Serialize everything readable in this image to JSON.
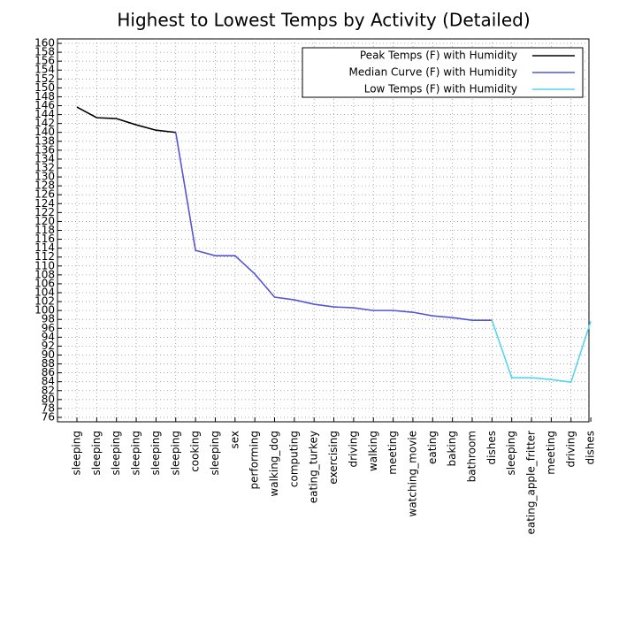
{
  "chart_data": {
    "type": "line",
    "title": "Highest to Lowest Temps by Activity (Detailed)",
    "categories": [
      "sleeping",
      "sleeping",
      "sleeping",
      "sleeping",
      "sleeping",
      "sleeping",
      "cooking",
      "sleeping",
      "sex",
      "performing",
      "walking_dog",
      "computing",
      "eating_turkey",
      "exercising",
      "driving",
      "walking",
      "meeting",
      "watching_movie",
      "eating",
      "baking",
      "bathroom",
      "dishes",
      "sleeping",
      "eating_apple_fritter",
      "meeting",
      "driving",
      "dishes"
    ],
    "series": [
      {
        "name": "Peak Temps (F) with Humidity",
        "color": "#000000",
        "values": [
          145.7,
          143.3,
          143.1,
          141.7,
          140.5,
          140,
          null,
          null,
          null,
          null,
          null,
          null,
          null,
          null,
          null,
          null,
          null,
          null,
          null,
          null,
          null,
          null,
          null,
          null,
          null,
          null,
          null
        ]
      },
      {
        "name": "Median Curve (F) with Humidity",
        "color": "#5555d5",
        "values": [
          null,
          null,
          null,
          null,
          null,
          140,
          113.5,
          112.3,
          112.3,
          108.2,
          103,
          102.4,
          101.4,
          100.8,
          100.6,
          100,
          100,
          99.6,
          98.8,
          98.4,
          97.8,
          97.8,
          null,
          null,
          null,
          null,
          null
        ]
      },
      {
        "name": "Low Temps (F) with Humidity",
        "color": "#55d5f0",
        "values": [
          null,
          null,
          null,
          null,
          null,
          null,
          null,
          null,
          null,
          null,
          null,
          null,
          null,
          null,
          null,
          null,
          null,
          null,
          null,
          null,
          null,
          97.8,
          84.9,
          84.9,
          84.5,
          83.9,
          97.6
        ]
      }
    ],
    "ylim": [
      75,
      161
    ],
    "yticks": [
      76,
      78,
      80,
      82,
      84,
      86,
      88,
      90,
      92,
      94,
      96,
      98,
      100,
      102,
      104,
      106,
      108,
      110,
      112,
      114,
      116,
      118,
      120,
      122,
      124,
      126,
      128,
      130,
      132,
      134,
      136,
      138,
      140,
      142,
      144,
      146,
      148,
      150,
      152,
      154,
      156,
      158,
      160
    ],
    "grid": true,
    "legend": "upper right"
  }
}
